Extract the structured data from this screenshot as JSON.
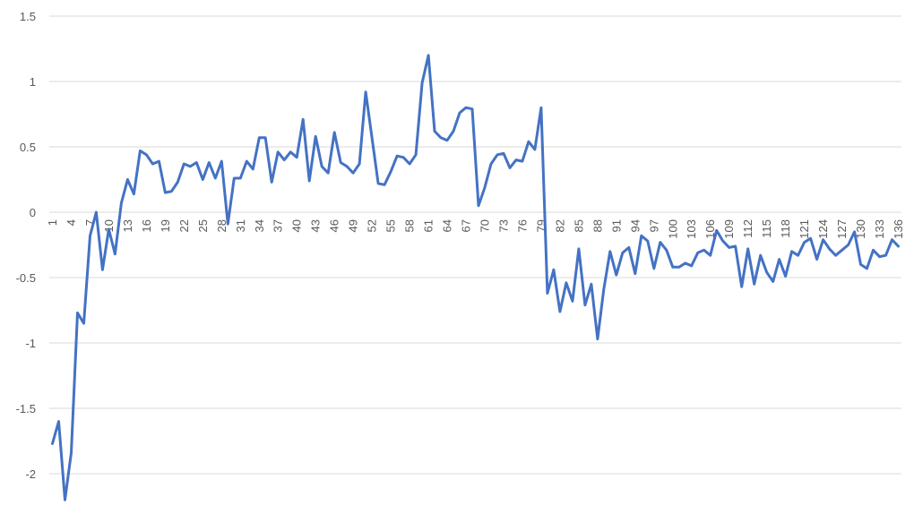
{
  "chart_data": {
    "type": "line",
    "title": "",
    "xlabel": "",
    "ylabel": "",
    "ylim": [
      -2,
      1.5
    ],
    "grid": true,
    "legend": "none",
    "x_tick_labels": [
      "1",
      "4",
      "7",
      "10",
      "13",
      "16",
      "19",
      "22",
      "25",
      "28",
      "31",
      "34",
      "37",
      "40",
      "43",
      "46",
      "49",
      "52",
      "55",
      "58",
      "61",
      "64",
      "67",
      "70",
      "73",
      "76",
      "79",
      "82",
      "85",
      "88",
      "91",
      "94",
      "97",
      "100",
      "103",
      "106",
      "109",
      "112",
      "115",
      "118",
      "121",
      "124",
      "127",
      "130",
      "133",
      "136"
    ],
    "y_tick_labels": [
      "1.5",
      "1",
      "0.5",
      "0",
      "-0.5",
      "-1",
      "-1.5",
      "-2"
    ],
    "series": [
      {
        "color": "#4472C4",
        "x": [
          1,
          2,
          3,
          4,
          5,
          6,
          7,
          8,
          9,
          10,
          11,
          12,
          13,
          14,
          15,
          16,
          17,
          18,
          19,
          20,
          21,
          22,
          23,
          24,
          25,
          26,
          27,
          28,
          29,
          30,
          31,
          32,
          33,
          34,
          35,
          36,
          37,
          38,
          39,
          40,
          41,
          42,
          43,
          44,
          45,
          46,
          47,
          48,
          49,
          50,
          51,
          52,
          53,
          54,
          55,
          56,
          57,
          58,
          59,
          60,
          61,
          62,
          63,
          64,
          65,
          66,
          67,
          68,
          69,
          70,
          71,
          72,
          73,
          74,
          75,
          76,
          77,
          78,
          79,
          80,
          81,
          82,
          83,
          84,
          85,
          86,
          87,
          88,
          89,
          90,
          91,
          92,
          93,
          94,
          95,
          96,
          97,
          98,
          99,
          100,
          101,
          102,
          103,
          104,
          105,
          106,
          107,
          108,
          109,
          110,
          111,
          112,
          113,
          114,
          115,
          116,
          117,
          118,
          119,
          120,
          121,
          122,
          123,
          124,
          125,
          126,
          127,
          128,
          129,
          130,
          131,
          132,
          133,
          134,
          135,
          136
        ],
        "values": [
          -1.77,
          -1.6,
          -2.2,
          -1.84,
          -0.77,
          -0.85,
          -0.18,
          0.0,
          -0.44,
          -0.13,
          -0.32,
          0.07,
          0.25,
          0.14,
          0.47,
          0.44,
          0.37,
          0.39,
          0.15,
          0.16,
          0.23,
          0.37,
          0.35,
          0.38,
          0.25,
          0.38,
          0.26,
          0.39,
          -0.09,
          0.26,
          0.26,
          0.39,
          0.33,
          0.57,
          0.57,
          0.23,
          0.46,
          0.4,
          0.46,
          0.42,
          0.71,
          0.24,
          0.58,
          0.35,
          0.3,
          0.61,
          0.38,
          0.35,
          0.3,
          0.37,
          0.92,
          0.57,
          0.22,
          0.21,
          0.31,
          0.43,
          0.42,
          0.37,
          0.44,
          0.99,
          1.2,
          0.62,
          0.57,
          0.55,
          0.62,
          0.76,
          0.8,
          0.79,
          0.05,
          0.19,
          0.37,
          0.44,
          0.45,
          0.34,
          0.4,
          0.39,
          0.54,
          0.48,
          0.8,
          -0.62,
          -0.44,
          -0.76,
          -0.54,
          -0.68,
          -0.28,
          -0.71,
          -0.55,
          -0.97,
          -0.59,
          -0.3,
          -0.48,
          -0.31,
          -0.27,
          -0.47,
          -0.18,
          -0.22,
          -0.43,
          -0.23,
          -0.29,
          -0.42,
          -0.42,
          -0.39,
          -0.41,
          -0.31,
          -0.29,
          -0.33,
          -0.14,
          -0.22,
          -0.27,
          -0.26,
          -0.57,
          -0.28,
          -0.55,
          -0.33,
          -0.46,
          -0.53,
          -0.36,
          -0.49,
          -0.3,
          -0.33,
          -0.23,
          -0.2,
          -0.36,
          -0.21,
          -0.28,
          -0.33,
          -0.29,
          -0.25,
          -0.15,
          -0.4,
          -0.43,
          -0.29,
          -0.34,
          -0.33,
          -0.21,
          -0.26
        ]
      }
    ]
  }
}
